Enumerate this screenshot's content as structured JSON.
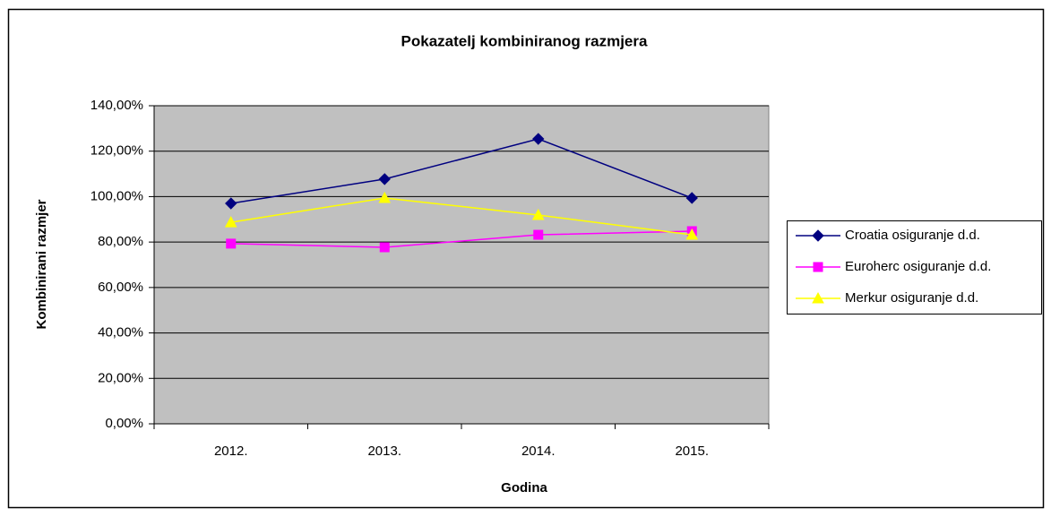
{
  "chart_data": {
    "type": "line",
    "title": "Pokazatelj kombiniranog razmjera",
    "x_label": "Godina",
    "y_label": "Kombinirani razmjer",
    "categories": [
      "2012.",
      "2013.",
      "2014.",
      "2015."
    ],
    "series": [
      {
        "name": "Croatia osiguranje d.d.",
        "color": "#000080",
        "marker": "diamond",
        "values": [
          97.0,
          107.7,
          125.4,
          99.4
        ]
      },
      {
        "name": "Euroherc osiguranje d.d.",
        "color": "#ff00ff",
        "marker": "square",
        "values": [
          79.3,
          77.7,
          83.2,
          84.8
        ]
      },
      {
        "name": "Merkur osiguranje d.d.",
        "color": "#ffff00",
        "marker": "triangle",
        "values": [
          88.7,
          99.4,
          91.9,
          83.2
        ]
      }
    ],
    "ylim": [
      0,
      140
    ],
    "yticks": [
      {
        "value": 0,
        "label": "0,00%"
      },
      {
        "value": 20,
        "label": "20,00%"
      },
      {
        "value": 40,
        "label": "40,00%"
      },
      {
        "value": 60,
        "label": "60,00%"
      },
      {
        "value": 80,
        "label": "80,00%"
      },
      {
        "value": 100,
        "label": "100,00%"
      },
      {
        "value": 120,
        "label": "120,00%"
      },
      {
        "value": 140,
        "label": "140,00%"
      }
    ],
    "grid": true,
    "legend": "right"
  }
}
